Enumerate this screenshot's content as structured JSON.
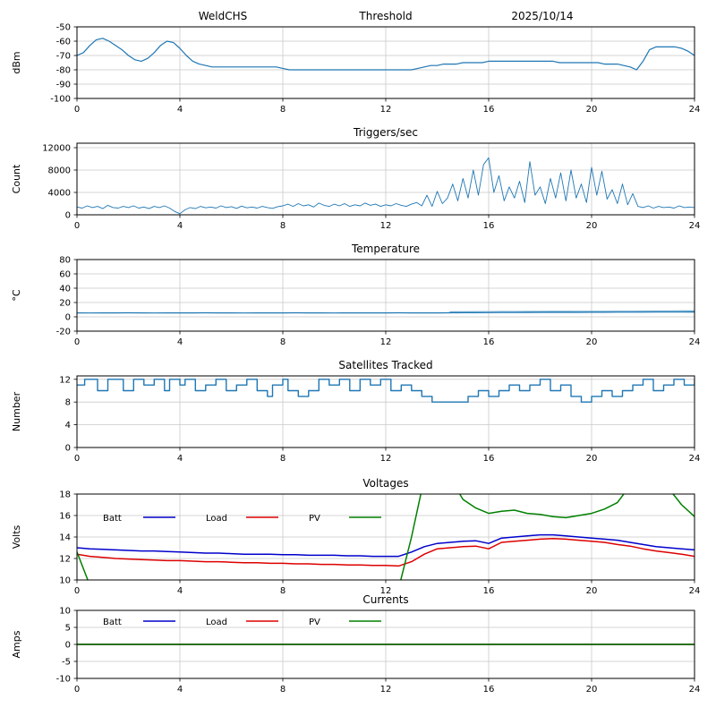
{
  "header": {
    "station": "WeldCHS",
    "date": "2025/10/14"
  },
  "colors": {
    "data_blue": "#1f77b4",
    "batt": "#0000cc",
    "load": "#dd0000",
    "pv": "#008000",
    "temp_aux": "#74add1"
  },
  "chart_data": [
    {
      "id": "threshold",
      "type": "line",
      "title": "Threshold",
      "ylabel": "dBm",
      "xlim": [
        0,
        24
      ],
      "xticks": [
        0,
        4,
        8,
        12,
        16,
        20,
        24
      ],
      "ylim": [
        -100,
        -50
      ],
      "yticks": [
        -100,
        -90,
        -80,
        -70,
        -60,
        -50
      ],
      "series": [
        {
          "name": "threshold-dbm",
          "color": "#1f77b4",
          "width": 1.2,
          "x0": 0,
          "dx": 0.25,
          "values": [
            -70,
            -68,
            -63,
            -59,
            -58,
            -60,
            -63,
            -66,
            -70,
            -73,
            -74,
            -72,
            -68,
            -63,
            -60,
            -61,
            -65,
            -70,
            -74,
            -76,
            -77,
            -78,
            -78,
            -78,
            -78,
            -78,
            -78,
            -78,
            -78,
            -78,
            -78,
            -78,
            -79,
            -80,
            -80,
            -80,
            -80,
            -80,
            -80,
            -80,
            -80,
            -80,
            -80,
            -80,
            -80,
            -80,
            -80,
            -80,
            -80,
            -80,
            -80,
            -80,
            -80,
            -79,
            -78,
            -77,
            -77,
            -76,
            -76,
            -76,
            -75,
            -75,
            -75,
            -75,
            -74,
            -74,
            -74,
            -74,
            -74,
            -74,
            -74,
            -74,
            -74,
            -74,
            -74,
            -75,
            -75,
            -75,
            -75,
            -75,
            -75,
            -75,
            -76,
            -76,
            -76,
            -77,
            -78,
            -80,
            -74,
            -66,
            -64,
            -64,
            -64,
            -64,
            -65,
            -67,
            -70
          ]
        }
      ]
    },
    {
      "id": "triggers",
      "type": "line",
      "title": "Triggers/sec",
      "ylabel": "Count",
      "xlim": [
        0,
        24
      ],
      "xticks": [
        0,
        4,
        8,
        12,
        16,
        20,
        24
      ],
      "ylim": [
        0,
        12800
      ],
      "yticks": [
        0,
        4000,
        8000,
        12000
      ],
      "series": [
        {
          "name": "triggers-per-sec",
          "color": "#1f77b4",
          "width": 0.9,
          "x0": 0,
          "dx": 0.2,
          "values": [
            1400,
            1200,
            1600,
            1300,
            1500,
            1100,
            1700,
            1300,
            1200,
            1500,
            1300,
            1600,
            1200,
            1400,
            1100,
            1500,
            1300,
            1600,
            1200,
            600,
            200,
            900,
            1300,
            1100,
            1500,
            1250,
            1400,
            1200,
            1600,
            1300,
            1450,
            1150,
            1550,
            1250,
            1400,
            1200,
            1500,
            1300,
            1150,
            1450,
            1600,
            1900,
            1500,
            2000,
            1600,
            1800,
            1400,
            2100,
            1700,
            1500,
            1900,
            1600,
            2000,
            1500,
            1800,
            1600,
            2100,
            1700,
            1900,
            1500,
            1800,
            1600,
            2000,
            1700,
            1500,
            1900,
            2200,
            1600,
            3500,
            1500,
            4200,
            2000,
            3000,
            5500,
            2500,
            6500,
            3000,
            8000,
            3500,
            9000,
            10200,
            4000,
            7000,
            2500,
            5000,
            3000,
            6000,
            2200,
            9500,
            3500,
            5000,
            2000,
            6500,
            3000,
            7500,
            2500,
            8000,
            3000,
            5500,
            2200,
            8500,
            3500,
            7800,
            2800,
            4500,
            2000,
            5500,
            1800,
            3800,
            1500,
            1300,
            1600,
            1200,
            1500,
            1300,
            1400,
            1200,
            1600,
            1300,
            1400,
            1300
          ]
        }
      ]
    },
    {
      "id": "temperature",
      "type": "line",
      "title": "Temperature",
      "ylabel": "°C",
      "xlim": [
        0,
        24
      ],
      "xticks": [
        0,
        4,
        8,
        12,
        16,
        20,
        24
      ],
      "ylim": [
        -20,
        80
      ],
      "yticks": [
        -20,
        0,
        20,
        40,
        60,
        80
      ],
      "series": [
        {
          "name": "temperature-aux",
          "color": "#74add1",
          "width": 1.2,
          "x0": 14.5,
          "dx": 0.5,
          "values": [
            7.0,
            7.1,
            7.2,
            7.3,
            7.4,
            7.4,
            7.5,
            7.5,
            7.6,
            7.6,
            7.7,
            7.7,
            7.8,
            7.9,
            7.9,
            8.0,
            8.1,
            8.1,
            8.2,
            8.3
          ]
        },
        {
          "name": "temperature-main",
          "color": "#1f77b4",
          "width": 1.2,
          "x0": 0,
          "dx": 0.5,
          "values": [
            5.5,
            5.4,
            5.5,
            5.5,
            5.6,
            5.5,
            5.4,
            5.5,
            5.5,
            5.5,
            5.6,
            5.5,
            5.5,
            5.4,
            5.5,
            5.5,
            5.5,
            5.6,
            5.5,
            5.5,
            5.4,
            5.5,
            5.5,
            5.5,
            5.5,
            5.6,
            5.5,
            5.5,
            5.5,
            5.6,
            5.7,
            5.8,
            5.9,
            6.0,
            6.0,
            6.1,
            6.2,
            6.2,
            6.3,
            6.3,
            6.4,
            6.4,
            6.5,
            6.5,
            6.5,
            6.6,
            6.6,
            6.6,
            6.7
          ]
        }
      ]
    },
    {
      "id": "satellites",
      "type": "line",
      "title": "Satellites Tracked",
      "ylabel": "Number",
      "xlim": [
        0,
        24
      ],
      "xticks": [
        0,
        4,
        8,
        12,
        16,
        20,
        24
      ],
      "ylim": [
        0,
        12.6
      ],
      "yticks": [
        0,
        4,
        8,
        12
      ],
      "series": [
        {
          "name": "satellites-tracked",
          "color": "#1f77b4",
          "width": 1.4,
          "step": true,
          "x": [
            0,
            0.3,
            0.8,
            1.2,
            1.8,
            2.2,
            2.6,
            3.0,
            3.4,
            3.6,
            4.0,
            4.2,
            4.6,
            5.0,
            5.4,
            5.8,
            6.2,
            6.6,
            7.0,
            7.4,
            7.6,
            8.0,
            8.2,
            8.6,
            9.0,
            9.4,
            9.8,
            10.2,
            10.6,
            11.0,
            11.4,
            11.8,
            12.2,
            12.6,
            13.0,
            13.4,
            13.8,
            14.6,
            15.2,
            15.6,
            16.0,
            16.4,
            16.8,
            17.2,
            17.6,
            18.0,
            18.4,
            18.8,
            19.2,
            19.6,
            20.0,
            20.4,
            20.8,
            21.2,
            21.6,
            22.0,
            22.4,
            22.8,
            23.2,
            23.6,
            24.0
          ],
          "values": [
            11,
            12,
            10,
            12,
            10,
            12,
            11,
            12,
            10,
            12,
            11,
            12,
            10,
            11,
            12,
            10,
            11,
            12,
            10,
            9,
            11,
            12,
            10,
            9,
            10,
            12,
            11,
            12,
            10,
            12,
            11,
            12,
            10,
            11,
            10,
            9,
            8,
            8,
            9,
            10,
            9,
            10,
            11,
            10,
            11,
            12,
            10,
            11,
            9,
            8,
            9,
            10,
            9,
            10,
            11,
            12,
            10,
            11,
            12,
            11,
            12
          ]
        }
      ]
    },
    {
      "id": "voltages",
      "type": "line",
      "title": "Voltages",
      "ylabel": "Volts",
      "xlim": [
        0,
        24
      ],
      "xticks": [
        0,
        4,
        8,
        12,
        16,
        20,
        24
      ],
      "ylim": [
        10,
        18
      ],
      "yticks": [
        10,
        12,
        14,
        16,
        18
      ],
      "legend": [
        {
          "label": "Batt",
          "color": "#0000cc"
        },
        {
          "label": "Load",
          "color": "#dd0000"
        },
        {
          "label": "PV",
          "color": "#008000"
        }
      ],
      "legend_dy": 30,
      "series": [
        {
          "name": "batt-volts",
          "color": "#0000cc",
          "width": 1.5,
          "x0": 0,
          "dx": 0.5,
          "values": [
            13.0,
            12.9,
            12.85,
            12.8,
            12.75,
            12.7,
            12.7,
            12.65,
            12.6,
            12.55,
            12.5,
            12.5,
            12.45,
            12.4,
            12.4,
            12.4,
            12.35,
            12.35,
            12.3,
            12.3,
            12.3,
            12.25,
            12.25,
            12.2,
            12.2,
            12.2,
            12.6,
            13.1,
            13.4,
            13.5,
            13.6,
            13.65,
            13.4,
            13.9,
            14.0,
            14.1,
            14.2,
            14.2,
            14.1,
            14.0,
            13.9,
            13.8,
            13.7,
            13.5,
            13.3,
            13.1,
            13.0,
            12.9,
            12.8
          ]
        },
        {
          "name": "load-volts",
          "color": "#dd0000",
          "width": 1.5,
          "x0": 0,
          "dx": 0.5,
          "values": [
            12.4,
            12.2,
            12.1,
            12.0,
            11.95,
            11.9,
            11.85,
            11.8,
            11.8,
            11.75,
            11.7,
            11.7,
            11.65,
            11.6,
            11.6,
            11.55,
            11.55,
            11.5,
            11.5,
            11.45,
            11.45,
            11.4,
            11.4,
            11.35,
            11.35,
            11.3,
            11.7,
            12.4,
            12.9,
            13.0,
            13.1,
            13.15,
            12.9,
            13.5,
            13.6,
            13.7,
            13.8,
            13.85,
            13.8,
            13.7,
            13.6,
            13.5,
            13.3,
            13.15,
            12.9,
            12.7,
            12.55,
            12.4,
            12.2
          ]
        },
        {
          "name": "pv-volts",
          "color": "#008000",
          "width": 1.5,
          "x0": 0,
          "dx": 0.5,
          "values": [
            12.6,
            9.5,
            9.0,
            9.0,
            9.0,
            9.0,
            9.0,
            9.0,
            9.0,
            9.0,
            9.0,
            9.0,
            9.0,
            9.0,
            9.0,
            9.0,
            9.0,
            9.0,
            9.0,
            9.0,
            9.0,
            9.0,
            9.0,
            9.0,
            9.0,
            9.2,
            14.0,
            19.5,
            20.0,
            19.5,
            17.5,
            16.7,
            16.2,
            16.4,
            16.5,
            16.2,
            16.1,
            15.9,
            15.8,
            16.0,
            16.2,
            16.6,
            17.2,
            18.8,
            19.5,
            19.5,
            18.5,
            17.0,
            15.9
          ]
        }
      ]
    },
    {
      "id": "currents",
      "type": "line",
      "title": "Currents",
      "ylabel": "Amps",
      "xlim": [
        0,
        24
      ],
      "xticks": [
        0,
        4,
        8,
        12,
        16,
        20,
        24
      ],
      "ylim": [
        -10,
        10
      ],
      "yticks": [
        -10,
        -5,
        0,
        5,
        10
      ],
      "legend": [
        {
          "label": "Batt",
          "color": "#0000cc"
        },
        {
          "label": "Load",
          "color": "#dd0000"
        },
        {
          "label": "PV",
          "color": "#008000"
        }
      ],
      "legend_dy": 16,
      "series": [
        {
          "name": "batt-amps",
          "color": "#0000cc",
          "width": 1.5,
          "x": [
            0,
            24
          ],
          "values": [
            0,
            0
          ]
        },
        {
          "name": "load-amps",
          "color": "#dd0000",
          "width": 1.5,
          "x": [
            0,
            24
          ],
          "values": [
            0,
            0
          ]
        },
        {
          "name": "pv-amps",
          "color": "#008000",
          "width": 1.5,
          "x": [
            0,
            24
          ],
          "values": [
            0,
            0
          ]
        }
      ]
    }
  ]
}
